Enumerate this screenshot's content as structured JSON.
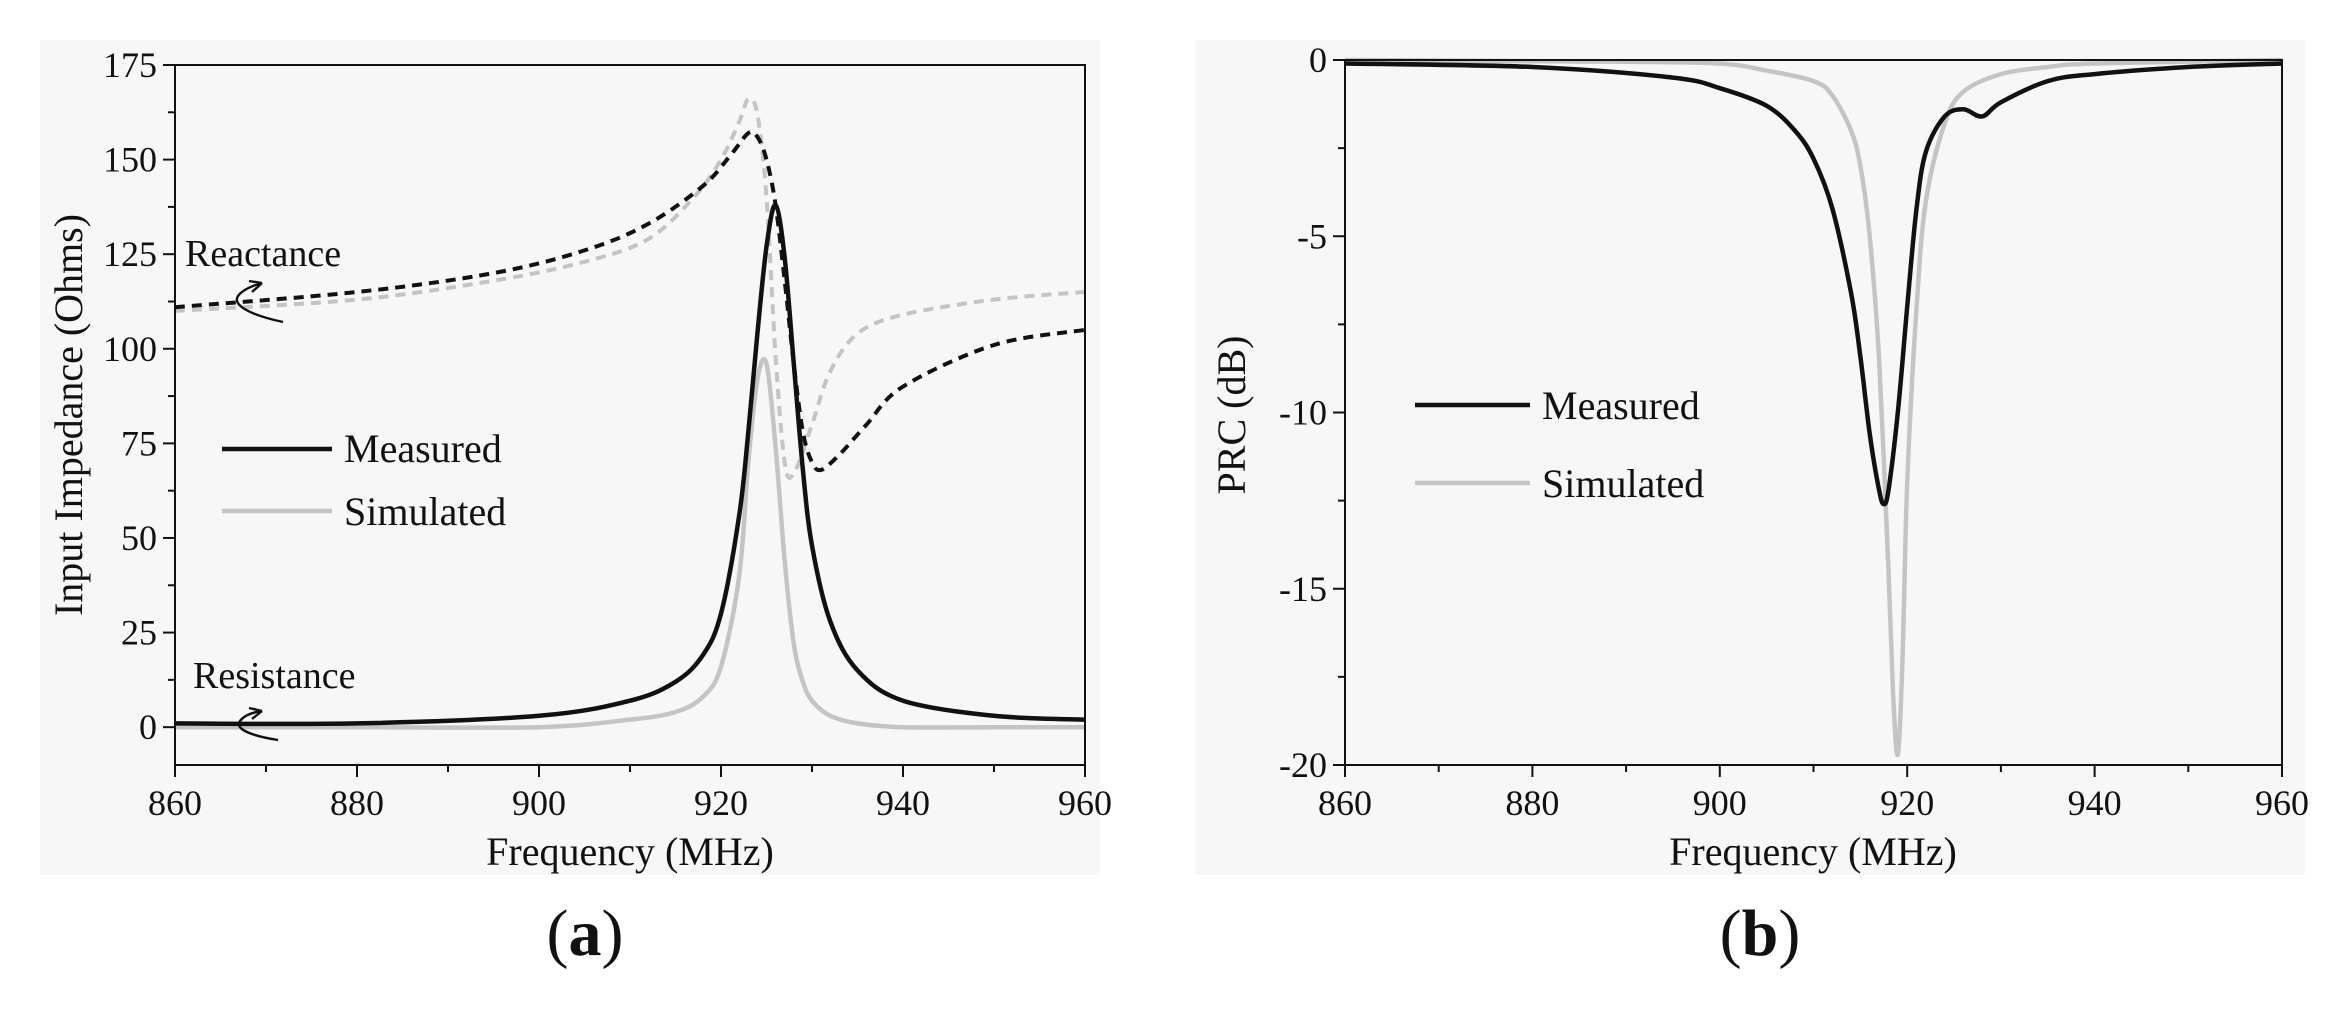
{
  "chart_data": [
    {
      "type": "line",
      "panel_label": "a",
      "xlabel": "Frequency (MHz)",
      "ylabel": "Input Impedance (Ohms)",
      "xlim": [
        860,
        960
      ],
      "ylim": [
        -10,
        175
      ],
      "xticks": [
        860,
        880,
        900,
        920,
        940,
        960
      ],
      "yticks": [
        0,
        25,
        50,
        75,
        100,
        125,
        150,
        175
      ],
      "legend": {
        "position": "center-left",
        "entries": [
          "Measured",
          "Simulated"
        ]
      },
      "annotations": [
        "Reactance",
        "Resistance"
      ],
      "colors": {
        "measured": "#111111",
        "simulated": "#c4c4c4"
      },
      "series": [
        {
          "name": "Measured",
          "quantity": "Resistance",
          "style": "solid",
          "x": [
            860,
            880,
            900,
            910,
            915,
            918,
            920,
            922,
            923,
            924,
            925,
            926,
            927,
            928,
            929,
            930,
            932,
            935,
            940,
            950,
            960
          ],
          "y": [
            1,
            1,
            3,
            7,
            12,
            19,
            30,
            56,
            78,
            104,
            127,
            138,
            124,
            96,
            68,
            48,
            28,
            15,
            7,
            3,
            2
          ]
        },
        {
          "name": "Simulated",
          "quantity": "Resistance",
          "style": "solid",
          "x": [
            860,
            880,
            900,
            910,
            915,
            918,
            920,
            922,
            923,
            924,
            925,
            926,
            927,
            928,
            929,
            930,
            932,
            935,
            940,
            950,
            960
          ],
          "y": [
            0,
            0,
            0,
            2,
            4,
            8,
            16,
            40,
            70,
            92,
            96,
            74,
            44,
            22,
            12,
            7,
            3,
            1,
            0,
            0,
            0
          ]
        },
        {
          "name": "Measured",
          "quantity": "Reactance",
          "style": "dashed",
          "x": [
            860,
            880,
            895,
            905,
            912,
            918,
            921,
            923,
            924,
            925,
            926,
            927,
            928,
            929,
            930,
            931,
            933,
            936,
            940,
            950,
            960
          ],
          "y": [
            111,
            115,
            120,
            126,
            133,
            143,
            151,
            157,
            156,
            150,
            138,
            118,
            96,
            78,
            70,
            68,
            72,
            80,
            90,
            101,
            105
          ]
        },
        {
          "name": "Simulated",
          "quantity": "Reactance",
          "style": "dashed",
          "x": [
            860,
            880,
            895,
            905,
            912,
            917,
            920,
            922,
            923,
            924,
            925,
            926,
            927,
            928,
            930,
            932,
            935,
            940,
            950,
            960
          ],
          "y": [
            110,
            113,
            118,
            123,
            129,
            140,
            150,
            160,
            166,
            162,
            140,
            98,
            70,
            67,
            80,
            94,
            104,
            109,
            113,
            115
          ]
        }
      ]
    },
    {
      "type": "line",
      "panel_label": "b",
      "xlabel": "Frequency (MHz)",
      "ylabel": "PRC (dB)",
      "xlim": [
        860,
        960
      ],
      "ylim": [
        -20,
        0
      ],
      "xticks": [
        860,
        880,
        900,
        920,
        940,
        960
      ],
      "yticks": [
        0,
        -5,
        -10,
        -15,
        -20
      ],
      "legend": {
        "position": "center-left",
        "entries": [
          "Measured",
          "Simulated"
        ]
      },
      "colors": {
        "measured": "#111111",
        "simulated": "#c4c4c4"
      },
      "series": [
        {
          "name": "Measured",
          "style": "solid",
          "x": [
            860,
            880,
            895,
            900,
            905,
            908,
            910,
            912,
            914,
            915,
            916,
            917,
            917.5,
            918,
            919,
            920,
            921,
            922,
            924,
            926,
            928,
            930,
            935,
            940,
            950,
            960
          ],
          "y": [
            -0.1,
            -0.2,
            -0.5,
            -0.8,
            -1.3,
            -2.0,
            -2.8,
            -4.2,
            -6.6,
            -8.4,
            -10.6,
            -12.2,
            -12.6,
            -12.2,
            -10.0,
            -7.0,
            -4.2,
            -2.6,
            -1.6,
            -1.4,
            -1.6,
            -1.2,
            -0.6,
            -0.4,
            -0.2,
            -0.1
          ]
        },
        {
          "name": "Simulated",
          "style": "solid",
          "x": [
            860,
            890,
            900,
            905,
            910,
            912,
            914,
            915,
            916,
            917,
            918,
            918.5,
            919,
            919.5,
            920,
            921,
            922,
            924,
            926,
            930,
            935,
            940,
            960
          ],
          "y": [
            0,
            -0.05,
            -0.1,
            -0.3,
            -0.6,
            -1.0,
            -2.0,
            -3.0,
            -5.0,
            -8.5,
            -14.5,
            -18.0,
            -19.7,
            -17.0,
            -12.0,
            -7.0,
            -4.0,
            -1.8,
            -0.9,
            -0.4,
            -0.2,
            -0.1,
            0
          ]
        }
      ]
    }
  ]
}
